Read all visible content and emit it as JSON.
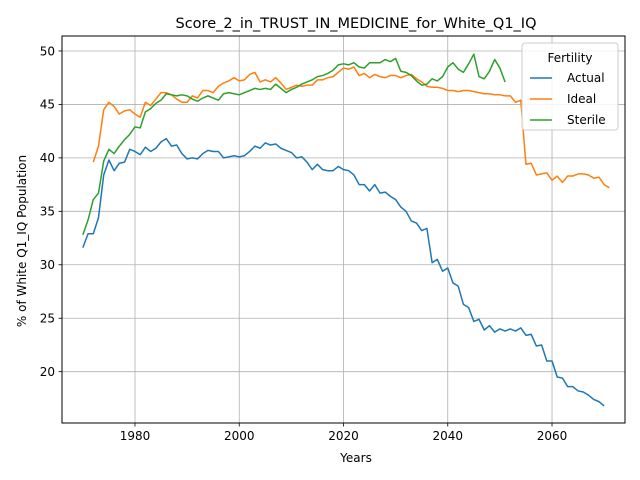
{
  "chart_data": {
    "type": "line",
    "title": "Score_2_in_TRUST_IN_MEDICINE_for_White_Q1_IQ",
    "xlabel": "Years",
    "ylabel": "% of White Q1_IQ Population",
    "xlim": [
      1966,
      2074
    ],
    "ylim": [
      15.2,
      51.4
    ],
    "xticks": [
      1980,
      2000,
      2020,
      2040,
      2060
    ],
    "yticks": [
      20,
      25,
      30,
      35,
      40,
      45,
      50
    ],
    "grid": true,
    "legend": {
      "title": "Fertility",
      "position": "top-right"
    },
    "series": [
      {
        "name": "Actual",
        "color": "#1f77b4",
        "points": [
          [
            1970,
            31.6
          ],
          [
            1971,
            32.9
          ],
          [
            1972,
            32.9
          ],
          [
            1973,
            34.4
          ],
          [
            1974,
            38.4
          ],
          [
            1975,
            39.8
          ],
          [
            1976,
            38.8
          ],
          [
            1977,
            39.5
          ],
          [
            1978,
            39.6
          ],
          [
            1979,
            40.8
          ],
          [
            1980,
            40.6
          ],
          [
            1981,
            40.3
          ],
          [
            1982,
            41.0
          ],
          [
            1983,
            40.6
          ],
          [
            1984,
            40.9
          ],
          [
            1985,
            41.5
          ],
          [
            1986,
            41.8
          ],
          [
            1987,
            41.1
          ],
          [
            1988,
            41.2
          ],
          [
            1989,
            40.4
          ],
          [
            1990,
            39.9
          ],
          [
            1991,
            40.0
          ],
          [
            1992,
            39.9
          ],
          [
            1993,
            40.4
          ],
          [
            1994,
            40.7
          ],
          [
            1995,
            40.6
          ],
          [
            1996,
            40.6
          ],
          [
            1997,
            40.0
          ],
          [
            1998,
            40.1
          ],
          [
            1999,
            40.2
          ],
          [
            2000,
            40.1
          ],
          [
            2001,
            40.2
          ],
          [
            2002,
            40.6
          ],
          [
            2003,
            41.1
          ],
          [
            2004,
            40.9
          ],
          [
            2005,
            41.4
          ],
          [
            2006,
            41.2
          ],
          [
            2007,
            41.3
          ],
          [
            2008,
            40.9
          ],
          [
            2009,
            40.7
          ],
          [
            2010,
            40.5
          ],
          [
            2011,
            40.0
          ],
          [
            2012,
            40.1
          ],
          [
            2013,
            39.6
          ],
          [
            2014,
            38.9
          ],
          [
            2015,
            39.4
          ],
          [
            2016,
            38.9
          ],
          [
            2017,
            38.8
          ],
          [
            2018,
            38.8
          ],
          [
            2019,
            39.2
          ],
          [
            2020,
            38.9
          ],
          [
            2021,
            38.8
          ],
          [
            2022,
            38.4
          ],
          [
            2023,
            37.5
          ],
          [
            2024,
            37.5
          ],
          [
            2025,
            36.9
          ],
          [
            2026,
            37.5
          ],
          [
            2027,
            36.7
          ],
          [
            2028,
            36.8
          ],
          [
            2029,
            36.4
          ],
          [
            2030,
            36.1
          ],
          [
            2031,
            35.4
          ],
          [
            2032,
            35.0
          ],
          [
            2033,
            34.1
          ],
          [
            2034,
            33.9
          ],
          [
            2035,
            33.2
          ],
          [
            2036,
            33.4
          ],
          [
            2037,
            30.2
          ],
          [
            2038,
            30.5
          ],
          [
            2039,
            29.4
          ],
          [
            2040,
            29.7
          ],
          [
            2041,
            28.3
          ],
          [
            2042,
            28.0
          ],
          [
            2043,
            26.3
          ],
          [
            2044,
            26.0
          ],
          [
            2045,
            24.7
          ],
          [
            2046,
            24.9
          ],
          [
            2047,
            23.9
          ],
          [
            2048,
            24.3
          ],
          [
            2049,
            23.7
          ],
          [
            2050,
            24.0
          ],
          [
            2051,
            23.8
          ],
          [
            2052,
            24.0
          ],
          [
            2053,
            23.8
          ],
          [
            2054,
            24.1
          ],
          [
            2055,
            23.4
          ],
          [
            2056,
            23.5
          ],
          [
            2057,
            22.4
          ],
          [
            2058,
            22.5
          ],
          [
            2059,
            21.0
          ],
          [
            2060,
            21.0
          ],
          [
            2061,
            19.5
          ],
          [
            2062,
            19.4
          ],
          [
            2063,
            18.6
          ],
          [
            2064,
            18.6
          ],
          [
            2065,
            18.2
          ],
          [
            2066,
            18.1
          ],
          [
            2067,
            17.8
          ],
          [
            2068,
            17.4
          ],
          [
            2069,
            17.2
          ],
          [
            2070,
            16.8
          ]
        ]
      },
      {
        "name": "Ideal",
        "color": "#ff7f0e",
        "points": [
          [
            1972,
            39.6
          ],
          [
            1973,
            41.1
          ],
          [
            1974,
            44.5
          ],
          [
            1975,
            45.2
          ],
          [
            1976,
            44.8
          ],
          [
            1977,
            44.1
          ],
          [
            1978,
            44.4
          ],
          [
            1979,
            44.5
          ],
          [
            1980,
            44.1
          ],
          [
            1981,
            43.8
          ],
          [
            1982,
            45.2
          ],
          [
            1983,
            44.9
          ],
          [
            1984,
            45.5
          ],
          [
            1985,
            46.1
          ],
          [
            1986,
            46.1
          ],
          [
            1987,
            45.9
          ],
          [
            1988,
            45.5
          ],
          [
            1989,
            45.2
          ],
          [
            1990,
            45.2
          ],
          [
            1991,
            45.8
          ],
          [
            1992,
            45.6
          ],
          [
            1993,
            46.3
          ],
          [
            1994,
            46.3
          ],
          [
            1995,
            46.1
          ],
          [
            1996,
            46.7
          ],
          [
            1997,
            47.0
          ],
          [
            1998,
            47.2
          ],
          [
            1999,
            47.5
          ],
          [
            2000,
            47.2
          ],
          [
            2001,
            47.3
          ],
          [
            2002,
            47.8
          ],
          [
            2003,
            48.0
          ],
          [
            2004,
            47.1
          ],
          [
            2005,
            47.3
          ],
          [
            2006,
            47.1
          ],
          [
            2007,
            47.5
          ],
          [
            2008,
            47.0
          ],
          [
            2009,
            46.4
          ],
          [
            2010,
            46.6
          ],
          [
            2011,
            46.8
          ],
          [
            2012,
            46.7
          ],
          [
            2013,
            46.8
          ],
          [
            2014,
            46.8
          ],
          [
            2015,
            47.3
          ],
          [
            2016,
            47.3
          ],
          [
            2017,
            47.5
          ],
          [
            2018,
            47.6
          ],
          [
            2019,
            48.0
          ],
          [
            2020,
            48.4
          ],
          [
            2021,
            48.3
          ],
          [
            2022,
            48.5
          ],
          [
            2023,
            47.7
          ],
          [
            2024,
            47.9
          ],
          [
            2025,
            47.5
          ],
          [
            2026,
            47.8
          ],
          [
            2027,
            47.6
          ],
          [
            2028,
            47.5
          ],
          [
            2029,
            47.7
          ],
          [
            2030,
            47.7
          ],
          [
            2031,
            47.5
          ],
          [
            2032,
            47.7
          ],
          [
            2033,
            47.8
          ],
          [
            2034,
            47.4
          ],
          [
            2035,
            47.1
          ],
          [
            2036,
            46.7
          ],
          [
            2037,
            46.6
          ],
          [
            2038,
            46.6
          ],
          [
            2039,
            46.5
          ],
          [
            2040,
            46.3
          ],
          [
            2041,
            46.3
          ],
          [
            2042,
            46.2
          ],
          [
            2043,
            46.3
          ],
          [
            2044,
            46.3
          ],
          [
            2045,
            46.2
          ],
          [
            2046,
            46.1
          ],
          [
            2047,
            46.0
          ],
          [
            2048,
            46.0
          ],
          [
            2049,
            45.9
          ],
          [
            2050,
            45.9
          ],
          [
            2051,
            45.8
          ],
          [
            2052,
            45.8
          ],
          [
            2053,
            45.2
          ],
          [
            2054,
            45.4
          ],
          [
            2055,
            39.4
          ],
          [
            2056,
            39.5
          ],
          [
            2057,
            38.4
          ],
          [
            2058,
            38.5
          ],
          [
            2059,
            38.6
          ],
          [
            2060,
            37.9
          ],
          [
            2061,
            38.3
          ],
          [
            2062,
            37.7
          ],
          [
            2063,
            38.3
          ],
          [
            2064,
            38.3
          ],
          [
            2065,
            38.5
          ],
          [
            2066,
            38.5
          ],
          [
            2067,
            38.4
          ],
          [
            2068,
            38.1
          ],
          [
            2069,
            38.2
          ],
          [
            2070,
            37.5
          ],
          [
            2071,
            37.2
          ]
        ]
      },
      {
        "name": "Sterile",
        "color": "#2ca02c",
        "points": [
          [
            1970,
            32.8
          ],
          [
            1971,
            34.2
          ],
          [
            1972,
            36.1
          ],
          [
            1973,
            36.7
          ],
          [
            1974,
            39.7
          ],
          [
            1975,
            40.8
          ],
          [
            1976,
            40.4
          ],
          [
            1977,
            41.1
          ],
          [
            1978,
            41.7
          ],
          [
            1979,
            42.2
          ],
          [
            1980,
            42.9
          ],
          [
            1981,
            42.8
          ],
          [
            1982,
            44.3
          ],
          [
            1983,
            44.6
          ],
          [
            1984,
            45.1
          ],
          [
            1985,
            45.4
          ],
          [
            1986,
            46.0
          ],
          [
            1987,
            45.9
          ],
          [
            1988,
            45.8
          ],
          [
            1989,
            45.9
          ],
          [
            1990,
            45.8
          ],
          [
            1991,
            45.5
          ],
          [
            1992,
            45.3
          ],
          [
            1993,
            45.6
          ],
          [
            1994,
            45.8
          ],
          [
            1995,
            45.6
          ],
          [
            1996,
            45.4
          ],
          [
            1997,
            46.0
          ],
          [
            1998,
            46.1
          ],
          [
            1999,
            46.0
          ],
          [
            2000,
            45.9
          ],
          [
            2001,
            46.1
          ],
          [
            2002,
            46.3
          ],
          [
            2003,
            46.5
          ],
          [
            2004,
            46.4
          ],
          [
            2005,
            46.5
          ],
          [
            2006,
            46.4
          ],
          [
            2007,
            46.9
          ],
          [
            2008,
            46.5
          ],
          [
            2009,
            46.1
          ],
          [
            2010,
            46.4
          ],
          [
            2011,
            46.6
          ],
          [
            2012,
            46.9
          ],
          [
            2013,
            47.1
          ],
          [
            2014,
            47.3
          ],
          [
            2015,
            47.6
          ],
          [
            2016,
            47.7
          ],
          [
            2017,
            47.9
          ],
          [
            2018,
            48.2
          ],
          [
            2019,
            48.7
          ],
          [
            2020,
            48.8
          ],
          [
            2021,
            48.7
          ],
          [
            2022,
            48.9
          ],
          [
            2023,
            48.5
          ],
          [
            2024,
            48.4
          ],
          [
            2025,
            48.9
          ],
          [
            2026,
            48.9
          ],
          [
            2027,
            48.9
          ],
          [
            2028,
            49.2
          ],
          [
            2029,
            49.0
          ],
          [
            2030,
            49.3
          ],
          [
            2031,
            48.1
          ],
          [
            2032,
            48.0
          ],
          [
            2033,
            47.7
          ],
          [
            2034,
            47.2
          ],
          [
            2035,
            46.8
          ],
          [
            2036,
            46.9
          ],
          [
            2037,
            47.4
          ],
          [
            2038,
            47.2
          ],
          [
            2039,
            47.6
          ],
          [
            2040,
            48.5
          ],
          [
            2041,
            48.9
          ],
          [
            2042,
            48.3
          ],
          [
            2043,
            48.0
          ],
          [
            2044,
            48.8
          ],
          [
            2045,
            49.7
          ],
          [
            2046,
            47.6
          ],
          [
            2047,
            47.4
          ],
          [
            2048,
            48.1
          ],
          [
            2049,
            49.2
          ],
          [
            2050,
            48.4
          ],
          [
            2051,
            47.1
          ]
        ]
      }
    ]
  }
}
